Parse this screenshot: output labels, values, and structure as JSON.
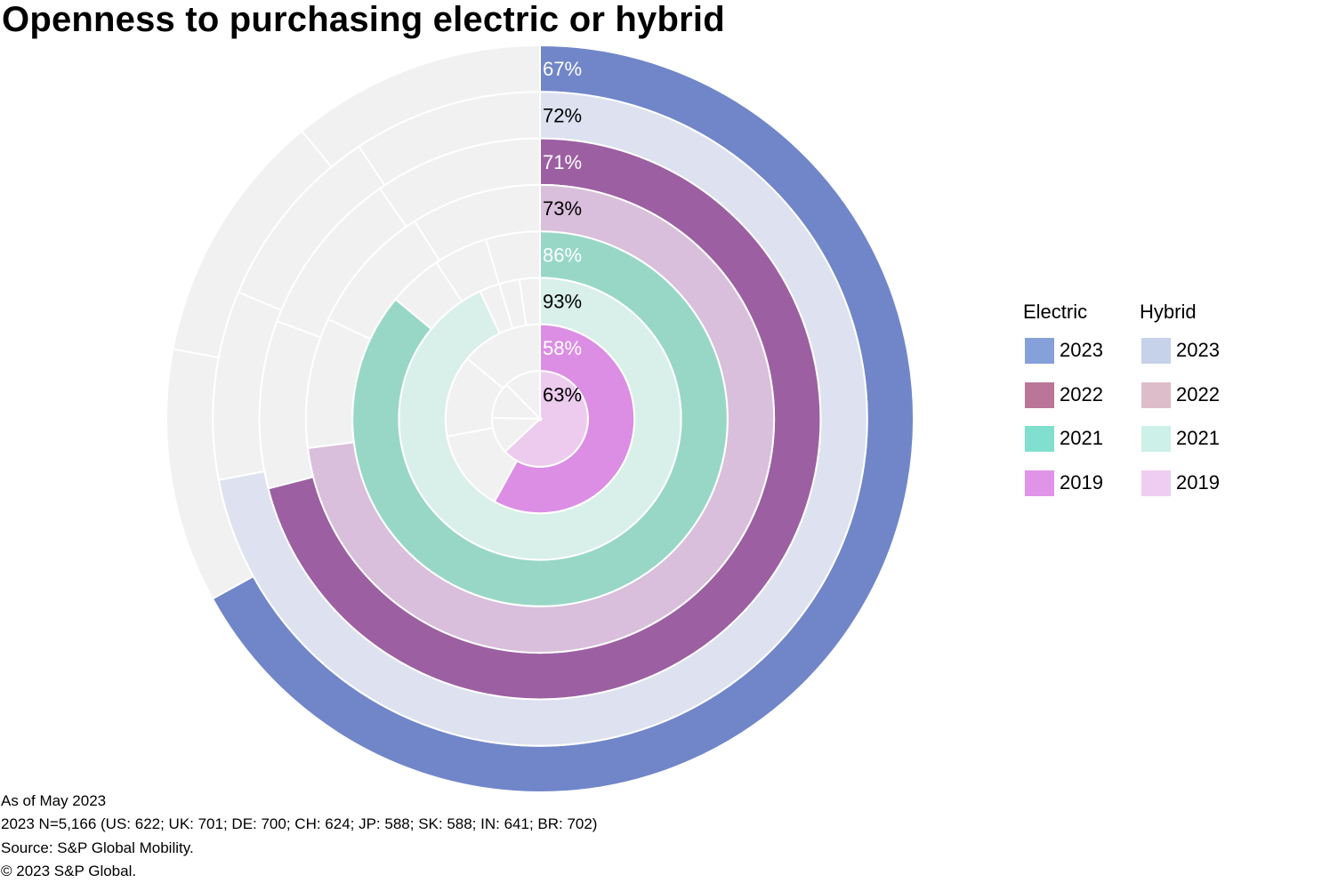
{
  "chart_data": {
    "type": "radial-bar",
    "title": "Openness to purchasing electric or hybrid",
    "rings_outer_to_inner": [
      {
        "series": "Electric",
        "year": "2023",
        "value": 67,
        "label": "67%"
      },
      {
        "series": "Hybrid",
        "year": "2023",
        "value": 72,
        "label": "72%"
      },
      {
        "series": "Electric",
        "year": "2022",
        "value": 71,
        "label": "71%"
      },
      {
        "series": "Hybrid",
        "year": "2022",
        "value": 73,
        "label": "73%"
      },
      {
        "series": "Electric",
        "year": "2021",
        "value": 86,
        "label": "86%"
      },
      {
        "series": "Hybrid",
        "year": "2021",
        "value": 93,
        "label": "93%"
      },
      {
        "series": "Electric",
        "year": "2019",
        "value": 58,
        "label": "58%"
      },
      {
        "series": "Hybrid",
        "year": "2019",
        "value": 63,
        "label": "63%"
      }
    ],
    "value_range": [
      0,
      100
    ],
    "legend": {
      "placement": "right",
      "groups": [
        {
          "name": "Electric",
          "entries": [
            "2023",
            "2022",
            "2021",
            "2019"
          ]
        },
        {
          "name": "Hybrid",
          "entries": [
            "2023",
            "2022",
            "2021",
            "2019"
          ]
        }
      ]
    }
  },
  "colors": {
    "ring_fill": [
      "#7186c8",
      "#dde1f0",
      "#9c60a2",
      "#d9bfdb",
      "#98d7c6",
      "#d9efea",
      "#db8ee3",
      "#edcbef"
    ],
    "ring_label": [
      "#ffffff",
      "#000000",
      "#ffffff",
      "#000000",
      "#ffffff",
      "#000000",
      "#ffffff",
      "#000000"
    ],
    "track": "#f1f1f1",
    "legend_electric": [
      "#86a1d9",
      "#b97698",
      "#80dfcf",
      "#e094e8"
    ],
    "legend_hybrid": [
      "#c5d2e9",
      "#ddbdc9",
      "#cdf0e8",
      "#efcdf2"
    ]
  },
  "legend": {
    "electric_heading": "Electric",
    "hybrid_heading": "Hybrid",
    "electric": [
      "2023",
      "2022",
      "2021",
      "2019"
    ],
    "hybrid": [
      "2023",
      "2022",
      "2021",
      "2019"
    ]
  },
  "footnotes": {
    "as_of": "As of May 2023",
    "sample": "2023 N=5,166 (US: 622; UK: 701; DE: 700; CH: 624; JP: 588; SK: 588; IN: 641; BR: 702)",
    "source": "Source: S&P Global Mobility.",
    "copyright": "© 2023 S&P Global."
  }
}
